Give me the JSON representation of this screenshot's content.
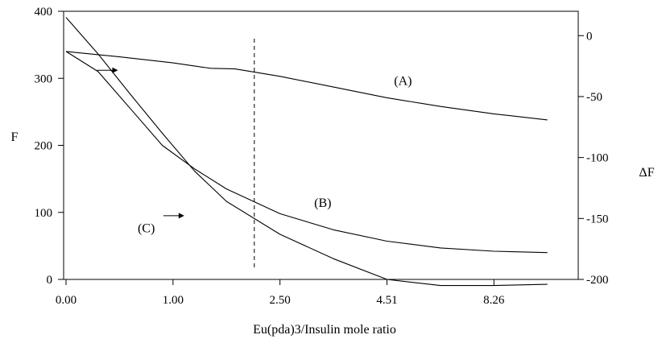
{
  "chart_data": {
    "type": "line",
    "title": "",
    "xlabel": "Eu(pda)3/Insulin mole ratio",
    "ylabel_left": "F",
    "ylabel_right": "ΔF",
    "x_tick_labels": [
      "0.00",
      "1.00",
      "2.50",
      "4.51",
      "8.26"
    ],
    "x_tick_positions": [
      0,
      1,
      2,
      3,
      4
    ],
    "x_range": [
      0,
      4.6
    ],
    "y_left": {
      "ylim": [
        0,
        400
      ],
      "ticks": [
        "0",
        "100",
        "200",
        "300",
        "400"
      ],
      "tick_values": [
        0,
        100,
        200,
        300,
        400
      ]
    },
    "y_right": {
      "ylim": [
        -200,
        20
      ],
      "ticks": [
        "0",
        "-50",
        "-100",
        "-150",
        "-200"
      ],
      "tick_values": [
        0,
        -50,
        -100,
        -150,
        -200
      ]
    },
    "grid": false,
    "dashed_line_x": 1.76,
    "series": [
      {
        "name": "(A)",
        "axis": "left",
        "x": [
          0,
          0.5,
          1.0,
          1.35,
          1.58,
          2.0,
          2.5,
          3.0,
          3.5,
          4.0,
          4.5
        ],
        "y": [
          340,
          332,
          323,
          315,
          314,
          303,
          287,
          271,
          258,
          247,
          238
        ]
      },
      {
        "name": "(B)",
        "axis": "right",
        "x": [
          0,
          0.3,
          0.6,
          0.9,
          1.2,
          1.5,
          2.0,
          2.5,
          3.0,
          3.5,
          4.0,
          4.5
        ],
        "y": [
          15,
          -15,
          -48,
          -80,
          -111,
          -136,
          -163,
          -183,
          -200,
          -205,
          -205,
          -204
        ]
      },
      {
        "name": "(C)",
        "axis": "left",
        "x": [
          0,
          0.3,
          0.6,
          0.9,
          1.2,
          1.5,
          2.0,
          2.5,
          3.0,
          3.5,
          4.0,
          4.5
        ],
        "y": [
          340,
          310,
          255,
          200,
          165,
          135,
          98,
          74,
          57,
          47,
          42,
          40
        ]
      }
    ],
    "annotations": [
      {
        "text": "→",
        "x": 0.38,
        "y": 312,
        "axis": "left"
      },
      {
        "text": "→",
        "x": 1.0,
        "y": 95,
        "axis": "left"
      }
    ]
  }
}
